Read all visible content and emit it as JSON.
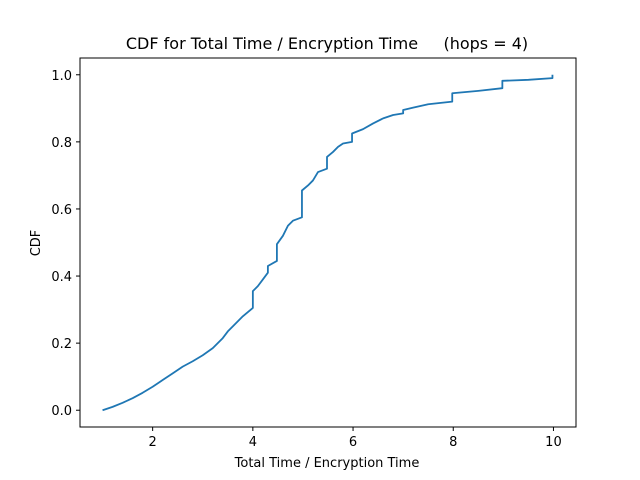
{
  "chart_data": {
    "type": "line",
    "title": "CDF for Total Time / Encryption Time     (hops = 4)",
    "xlabel": "Total Time / Encryption Time",
    "ylabel": "CDF",
    "xlim": [
      0.55,
      10.45
    ],
    "ylim": [
      -0.05,
      1.05
    ],
    "xticks": [
      2,
      4,
      6,
      8,
      10
    ],
    "yticks": [
      0.0,
      0.2,
      0.4,
      0.6,
      0.8,
      1.0
    ],
    "xtick_labels": [
      "2",
      "4",
      "6",
      "8",
      "10"
    ],
    "ytick_labels": [
      "0.0",
      "0.2",
      "0.4",
      "0.6",
      "0.8",
      "1.0"
    ],
    "grid": false,
    "series_color": "#1f77b4",
    "series": [
      {
        "x": [
          1.0,
          1.2,
          1.4,
          1.6,
          1.8,
          2.0,
          2.2,
          2.4,
          2.6,
          2.8,
          3.0,
          3.2,
          3.4,
          3.5,
          3.6,
          3.8,
          4.0,
          4.0,
          4.1,
          4.2,
          4.3,
          4.3,
          4.48,
          4.48,
          4.6,
          4.7,
          4.8,
          4.98,
          4.98,
          5.1,
          5.2,
          5.3,
          5.48,
          5.48,
          5.6,
          5.7,
          5.8,
          5.98,
          5.98,
          6.2,
          6.4,
          6.6,
          6.8,
          7.0,
          7.0,
          7.2,
          7.5,
          7.98,
          7.98,
          8.5,
          8.98,
          8.98,
          9.5,
          9.98,
          9.98
        ],
        "y": [
          0.0,
          0.01,
          0.022,
          0.036,
          0.052,
          0.07,
          0.09,
          0.11,
          0.13,
          0.146,
          0.164,
          0.185,
          0.215,
          0.235,
          0.25,
          0.28,
          0.305,
          0.355,
          0.37,
          0.39,
          0.41,
          0.43,
          0.445,
          0.495,
          0.52,
          0.55,
          0.565,
          0.575,
          0.655,
          0.67,
          0.685,
          0.71,
          0.72,
          0.755,
          0.77,
          0.785,
          0.795,
          0.8,
          0.825,
          0.838,
          0.855,
          0.87,
          0.88,
          0.885,
          0.895,
          0.902,
          0.912,
          0.92,
          0.945,
          0.952,
          0.96,
          0.982,
          0.985,
          0.99,
          1.0
        ]
      }
    ]
  }
}
